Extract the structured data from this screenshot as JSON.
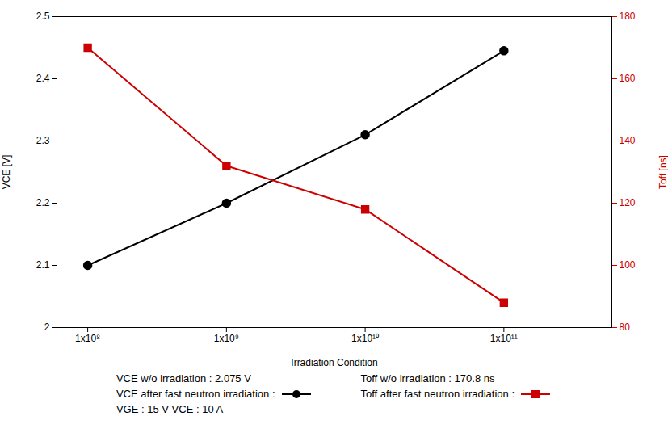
{
  "chart_data": {
    "type": "line",
    "xlabel": "Irradiation Condition",
    "ylabel": "VCE [V]",
    "y2label": "Toff [ns]",
    "log": "x",
    "x": [
      100000000.0,
      1000000000.0,
      10000000000.0,
      100000000000.0
    ],
    "xlim": [
      60000000.0,
      600000000000.0
    ],
    "xticks": [
      {
        "value": 100000000.0,
        "label": "1x10⁸"
      },
      {
        "value": 1000000000.0,
        "label": "1x10⁹"
      },
      {
        "value": 10000000000.0,
        "label": "1x10¹⁰"
      },
      {
        "value": 100000000000.0,
        "label": "1x10¹¹"
      }
    ],
    "ylim": [
      2.0,
      2.5
    ],
    "yticks": [
      2.0,
      2.1,
      2.2,
      2.3,
      2.4,
      2.5
    ],
    "y2lim": [
      80,
      180
    ],
    "y2ticks": [
      80,
      100,
      120,
      140,
      160,
      180
    ],
    "grid": false,
    "legend": "bottom",
    "series": [
      {
        "name": "VCE after fast neutron irradiation :",
        "color": "#000000",
        "marker": "circle",
        "values": [
          2.1,
          2.2,
          2.31,
          2.445
        ]
      },
      {
        "name": "Toff after fast neutron irradiation :",
        "color": "#cc0000",
        "marker": "square",
        "axis": "y2",
        "values": [
          170.0,
          132.0,
          118.0,
          88.0
        ]
      }
    ],
    "annotations": [
      "VCE w/o irradiation : 2.075 V",
      "VGE : 15 V VCE : 10 A",
      "Toff w/o irradiation : 170.8 ns"
    ]
  }
}
